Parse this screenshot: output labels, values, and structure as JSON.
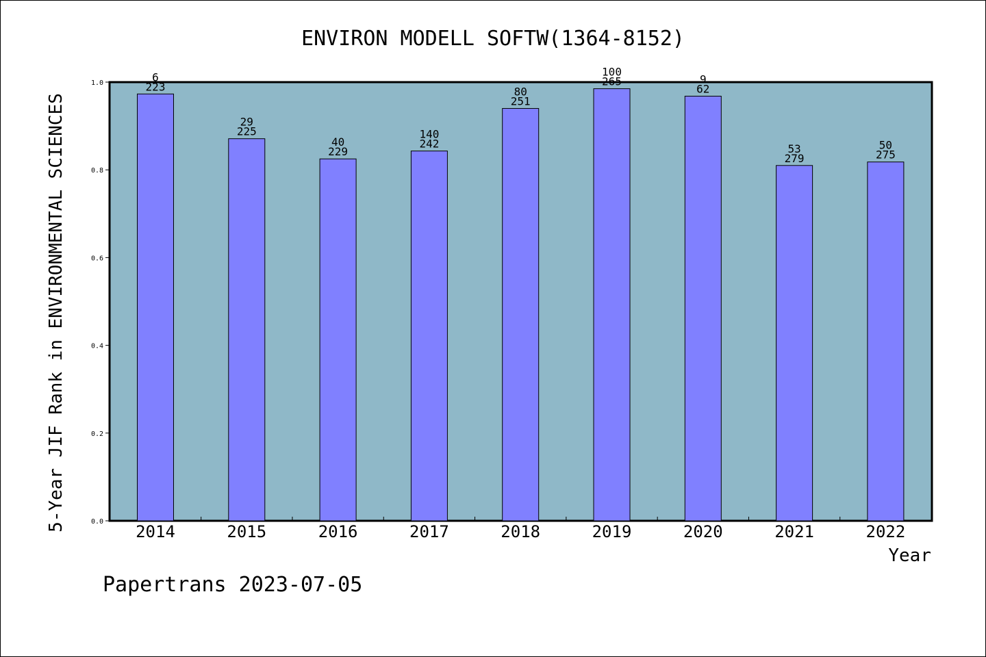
{
  "chart_data": {
    "type": "bar",
    "title": "ENVIRON MODELL SOFTW(1364-8152)",
    "xlabel": "Year",
    "ylabel": "5-Year JIF Rank in ENVIRONMENTAL SCIENCES",
    "ylim": [
      0,
      1.0
    ],
    "yticks": [
      "0.0",
      "0.2",
      "0.4",
      "0.6",
      "0.8",
      "1.0"
    ],
    "grid": false,
    "categories": [
      "2014",
      "2015",
      "2016",
      "2017",
      "2018",
      "2019",
      "2020",
      "2021",
      "2022"
    ],
    "values": [
      0.973,
      0.871,
      0.825,
      0.843,
      0.94,
      0.985,
      0.968,
      0.81,
      0.818
    ],
    "rank": [
      "6",
      "29",
      "40",
      "140",
      "80",
      "100",
      "9",
      "53",
      "50"
    ],
    "total": [
      "223",
      "225",
      "229",
      "242",
      "251",
      "265",
      "62",
      "279",
      "275"
    ],
    "colors": {
      "plot_background": "#8fb8c8",
      "bar_fill": "#8080ff",
      "bar_stroke": "#000000"
    }
  },
  "footer": {
    "text": "Papertrans 2023-07-05"
  }
}
